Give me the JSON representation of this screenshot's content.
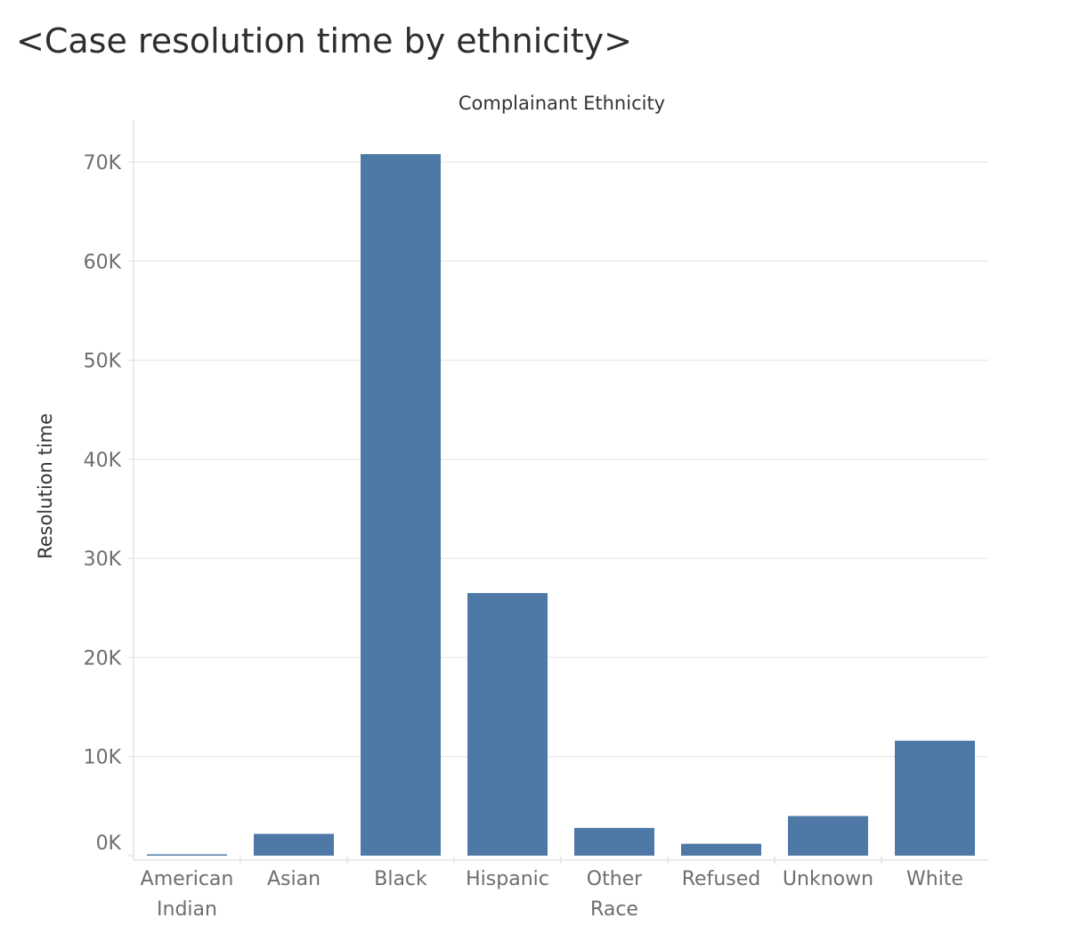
{
  "title": "<Case resolution time by ethnicity>",
  "chart_data": {
    "type": "bar",
    "title": "<Case resolution time by ethnicity>",
    "xlabel": "Complainant Ethnicity",
    "ylabel": "Resolution time",
    "categories": [
      [
        "American",
        "Indian"
      ],
      [
        "Asian"
      ],
      [
        "Black"
      ],
      [
        "Hispanic"
      ],
      [
        "Other",
        "Race"
      ],
      [
        "Refused"
      ],
      [
        "Unknown"
      ],
      [
        "White"
      ]
    ],
    "values": [
      100,
      2200,
      70800,
      26500,
      2800,
      1200,
      4000,
      11600
    ],
    "ylim": [
      0,
      70000
    ],
    "yticks": [
      0,
      10000,
      20000,
      30000,
      40000,
      50000,
      60000,
      70000
    ],
    "ytick_labels": [
      "0K",
      "10K",
      "20K",
      "30K",
      "40K",
      "50K",
      "60K",
      "70K"
    ],
    "grid": true,
    "legend": "none",
    "bar_color": "#4e79a7"
  }
}
